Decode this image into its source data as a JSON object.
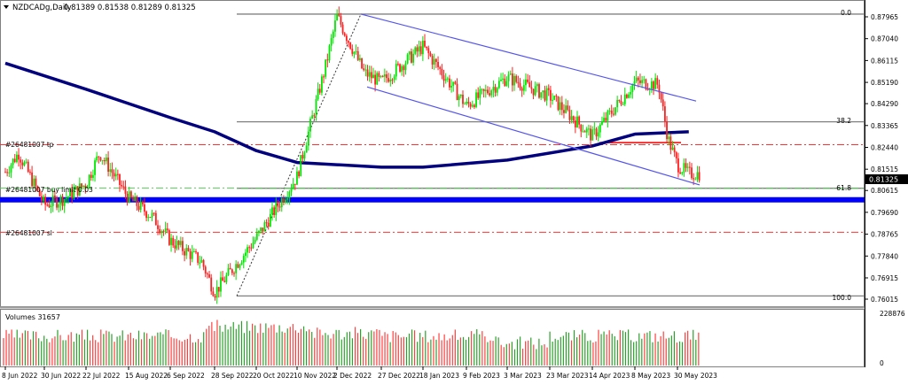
{
  "header": {
    "symbol": "NZDCADg,Daily",
    "ohlc": "0.81389 0.81538 0.81289 0.81325",
    "menu_icon": "triangle-down-icon"
  },
  "colors": {
    "bull": "#00e600",
    "bear": "#ff1f1f",
    "ma": "#00007f",
    "support": "#0000ff",
    "channel": "#5555ee",
    "fib": "#808080",
    "tp_sl": "#ff3030",
    "buy_limit": "#55cc55",
    "vol_up": "#2ca02c",
    "vol_down": "#ff4040",
    "axis": "#000000"
  },
  "price_axis": {
    "ticks": [
      "0.87965",
      "0.87040",
      "0.86115",
      "0.85190",
      "0.84290",
      "0.83365",
      "0.82440",
      "0.81515",
      "0.80615",
      "0.79690",
      "0.78765",
      "0.77840",
      "0.76915",
      "0.76015"
    ],
    "current_price": "0.81325"
  },
  "volume_pane": {
    "label": "Volumes 31657",
    "max_label": "228876",
    "min_label": "0"
  },
  "time_axis": {
    "labels": [
      "8 Jun 2022",
      "30 Jun 2022",
      "22 Jul 2022",
      "15 Aug 2022",
      "6 Sep 2022",
      "28 Sep 2022",
      "20 Oct 2022",
      "10 Nov 2022",
      "2 Dec 2022",
      "27 Dec 2022",
      "18 Jan 2023",
      "9 Feb 2023",
      "3 Mar 2023",
      "23 Mar 2023",
      "14 Apr 2023",
      "8 May 2023",
      "30 May 2023"
    ]
  },
  "annotations": {
    "tp_label": "#26481007 tp",
    "buy_limit_label": "#26481007 buy limit 0.03",
    "sl_label": "#26481007 sl",
    "fib_0": "0.0",
    "fib_38": "38.2",
    "fib_61": "61.8",
    "fib_100": "100.0"
  },
  "chart_data": {
    "type": "candlestick",
    "title": "NZDCADg,Daily",
    "ohlc_last": {
      "open": 0.81389,
      "high": 0.81538,
      "low": 0.81289,
      "close": 0.81325
    },
    "ylim": [
      0.76015,
      0.884
    ],
    "x_range": [
      "2022-06-08",
      "2023-06-05"
    ],
    "price_path": [
      {
        "date": "8 Jun 2022",
        "close": 0.814
      },
      {
        "date": "15 Jun 2022",
        "close": 0.822
      },
      {
        "date": "30 Jun 2022",
        "close": 0.8
      },
      {
        "date": "10 Jul 2022",
        "close": 0.803
      },
      {
        "date": "22 Jul 2022",
        "close": 0.809
      },
      {
        "date": "28 Jul 2022",
        "close": 0.822
      },
      {
        "date": "15 Aug 2022",
        "close": 0.803
      },
      {
        "date": "25 Aug 2022",
        "close": 0.795
      },
      {
        "date": "6 Sep 2022",
        "close": 0.785
      },
      {
        "date": "20 Sep 2022",
        "close": 0.776
      },
      {
        "date": "28 Sep 2022",
        "close": 0.763
      },
      {
        "date": "20 Oct 2022",
        "close": 0.786
      },
      {
        "date": "10 Nov 2022",
        "close": 0.812
      },
      {
        "date": "25 Nov 2022",
        "close": 0.86
      },
      {
        "date": "2 Dec 2022",
        "close": 0.88
      },
      {
        "date": "15 Dec 2022",
        "close": 0.856
      },
      {
        "date": "27 Dec 2022",
        "close": 0.852
      },
      {
        "date": "18 Jan 2023",
        "close": 0.867
      },
      {
        "date": "9 Feb 2023",
        "close": 0.842
      },
      {
        "date": "3 Mar 2023",
        "close": 0.854
      },
      {
        "date": "23 Mar 2023",
        "close": 0.846
      },
      {
        "date": "14 Apr 2023",
        "close": 0.829
      },
      {
        "date": "8 May 2023",
        "close": 0.852
      },
      {
        "date": "20 May 2023",
        "close": 0.851
      },
      {
        "date": "25 May 2023",
        "close": 0.828
      },
      {
        "date": "30 May 2023",
        "close": 0.817
      },
      {
        "date": "5 Jun 2023",
        "close": 0.81325
      }
    ],
    "moving_average": {
      "name": "MA (dark navy)",
      "points": [
        {
          "date": "8 Jun 2022",
          "value": 0.86
        },
        {
          "date": "22 Jul 2022",
          "value": 0.849
        },
        {
          "date": "6 Sep 2022",
          "value": 0.837
        },
        {
          "date": "28 Sep 2022",
          "value": 0.831
        },
        {
          "date": "20 Oct 2022",
          "value": 0.823
        },
        {
          "date": "10 Nov 2022",
          "value": 0.818
        },
        {
          "date": "27 Dec 2022",
          "value": 0.816
        },
        {
          "date": "18 Jan 2023",
          "value": 0.816
        },
        {
          "date": "3 Mar 2023",
          "value": 0.819
        },
        {
          "date": "14 Apr 2023",
          "value": 0.825
        },
        {
          "date": "8 May 2023",
          "value": 0.83
        },
        {
          "date": "5 Jun 2023",
          "value": 0.831
        }
      ]
    },
    "horizontal_levels": [
      {
        "name": "support (thick blue)",
        "value": 0.8022
      },
      {
        "name": "#26481007 tp",
        "value": 0.8255
      },
      {
        "name": "#26481007 buy limit 0.03",
        "value": 0.8072
      },
      {
        "name": "#26481007 sl",
        "value": 0.7885
      }
    ],
    "fibonacci": {
      "from": {
        "date": "28 Sep 2022",
        "price": 0.7615
      },
      "to": {
        "date": "2 Dec 2022",
        "price": 0.8808
      },
      "levels": [
        {
          "label": "0.0",
          "price": 0.8808
        },
        {
          "label": "38.2",
          "price": 0.8352
        },
        {
          "label": "61.8",
          "price": 0.8071
        },
        {
          "label": "100.0",
          "price": 0.7615
        }
      ]
    },
    "channel": {
      "upper": [
        {
          "date": "2 Dec 2022",
          "price": 0.8808
        },
        {
          "date": "30 May 2023",
          "price": 0.844
        }
      ],
      "lower": [
        {
          "date": "8 Dec 2022",
          "price": 0.85
        },
        {
          "date": "30 May 2023",
          "price": 0.8085
        }
      ]
    },
    "volume": {
      "label": "Volumes 31657",
      "ylim": [
        0,
        228876
      ]
    },
    "xlabel": "",
    "ylabel": ""
  }
}
